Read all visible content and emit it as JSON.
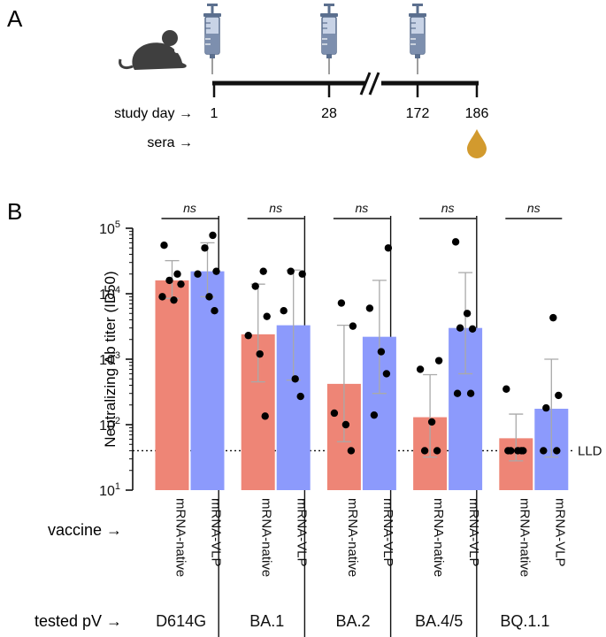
{
  "colors": {
    "native": "#ee8576",
    "vlp": "#8c9afc",
    "dot": "#000000",
    "err": "#a9a9a9",
    "axis": "#111111",
    "drop": "#d29a2e",
    "mouse": "#3f3f3f",
    "syringe_body": "#9aa9c4",
    "syringe_fill": "#5b6f8e"
  },
  "panel_a": {
    "letter": "A",
    "study_day_label": "study day →",
    "sera_label": "sera →",
    "days": [
      "1",
      "28",
      "172",
      "186"
    ],
    "icons": [
      "mouse-icon",
      "syringe-icon",
      "syringe-icon",
      "syringe-icon",
      "blood-drop-icon"
    ]
  },
  "panel_b": {
    "letter": "B",
    "vaccine_row_label": "vaccine →",
    "pv_row_label": "tested pV →",
    "lld_label": "LLD",
    "sig_label": "ns"
  },
  "chart_data": {
    "type": "bar",
    "title": "",
    "ylabel": "Neutralizing Ab titer (ID50)",
    "yscale": "log",
    "ylim": [
      10,
      100000
    ],
    "ytick_labels": [
      [
        "10",
        "1"
      ],
      [
        "10",
        "2"
      ],
      [
        "10",
        "3"
      ],
      [
        "10",
        "4"
      ],
      [
        "10",
        "5"
      ]
    ],
    "lld_value": 40,
    "series": [
      {
        "name": "mRNA-native",
        "color_key": "native"
      },
      {
        "name": "mRNA-VLP",
        "color_key": "vlp"
      }
    ],
    "groups": [
      {
        "pv": "D614G",
        "significance": "ns",
        "bars": [
          {
            "vaccine": "mRNA-native",
            "value": 16000,
            "err_low": 8500,
            "err_high": 32000,
            "points": [
              55000,
              20000,
              16000,
              14000,
              9000,
              8000
            ]
          },
          {
            "vaccine": "mRNA-VLP",
            "value": 22000,
            "err_low": 9000,
            "err_high": 60000,
            "points": [
              78000,
              50000,
              22000,
              20000,
              9000,
              5500
            ]
          }
        ]
      },
      {
        "pv": "BA.1",
        "significance": "ns",
        "bars": [
          {
            "vaccine": "mRNA-native",
            "value": 2400,
            "err_low": 450,
            "err_high": 14000,
            "points": [
              22000,
              13000,
              4500,
              2300,
              1200,
              135
            ]
          },
          {
            "vaccine": "mRNA-VLP",
            "value": 3300,
            "err_low": 480,
            "err_high": 23000,
            "points": [
              22000,
              20000,
              5500,
              500,
              270
            ]
          }
        ]
      },
      {
        "pv": "BA.2",
        "significance": "ns",
        "bars": [
          {
            "vaccine": "mRNA-native",
            "value": 420,
            "err_low": 55,
            "err_high": 3300,
            "points": [
              7200,
              3200,
              150,
              100,
              40
            ]
          },
          {
            "vaccine": "mRNA-VLP",
            "value": 2200,
            "err_low": 300,
            "err_high": 16000,
            "points": [
              50000,
              6000,
              1300,
              600,
              140
            ]
          }
        ]
      },
      {
        "pv": "BA.4/5",
        "significance": "ns",
        "bars": [
          {
            "vaccine": "mRNA-native",
            "value": 130,
            "err_low": 32,
            "err_high": 580,
            "points": [
              950,
              700,
              110,
              40,
              40
            ]
          },
          {
            "vaccine": "mRNA-VLP",
            "value": 3000,
            "err_low": 600,
            "err_high": 21000,
            "points": [
              62000,
              5000,
              2900,
              3000,
              300,
              300
            ]
          }
        ]
      },
      {
        "pv": "BQ.1.1",
        "significance": "ns",
        "bars": [
          {
            "vaccine": "mRNA-native",
            "value": 62,
            "err_low": 28,
            "err_high": 145,
            "points": [
              350,
              40,
              40,
              40,
              40,
              40
            ]
          },
          {
            "vaccine": "mRNA-VLP",
            "value": 175,
            "err_low": 32,
            "err_high": 1000,
            "points": [
              4300,
              280,
              180,
              40,
              40
            ]
          }
        ]
      }
    ]
  }
}
